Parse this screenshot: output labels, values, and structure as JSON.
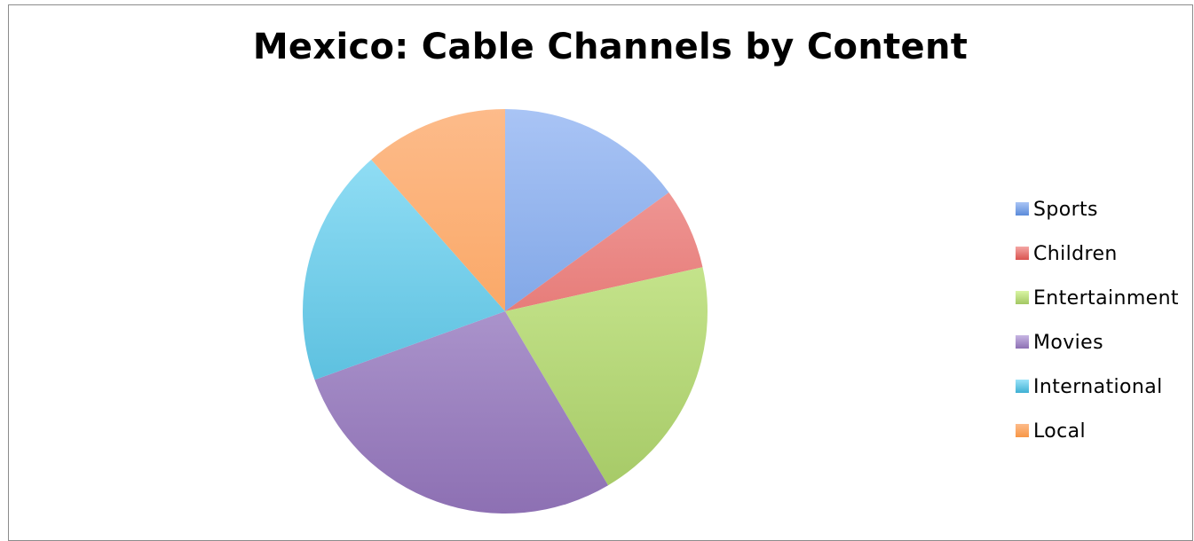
{
  "chart_data": {
    "type": "pie",
    "title": "Mexico: Cable Channels by Content",
    "categories": [
      "Sports",
      "Children",
      "Entertainment",
      "Movies",
      "International",
      "Local"
    ],
    "values": [
      15,
      6.5,
      20,
      28,
      19,
      11.5
    ],
    "unit": "percent (estimated)",
    "start_angle": "12 o'clock",
    "direction": "clockwise",
    "legend_position": "right",
    "colors": [
      "#5B8BD9",
      "#D9534F",
      "#A3C763",
      "#8D70B3",
      "#3FB0D3",
      "#F79646"
    ],
    "colors_light": [
      "#A9C4F5",
      "#F4A6A4",
      "#D9F5A4",
      "#C7B6E3",
      "#9BE3F9",
      "#FDBB8A"
    ]
  }
}
